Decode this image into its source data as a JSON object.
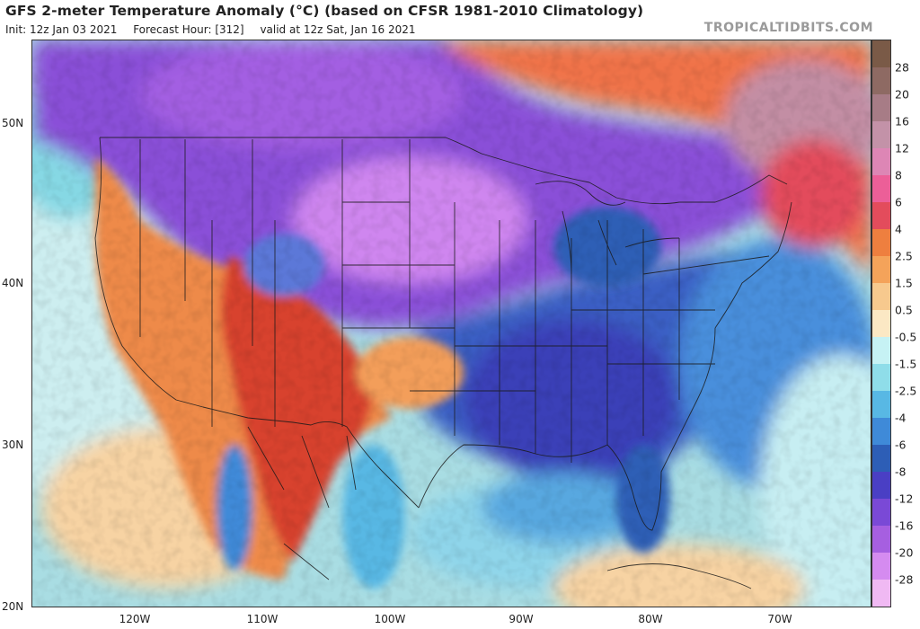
{
  "header": {
    "title": "GFS 2-meter Temperature Anomaly (°C) (based on CFSR 1981-2010 Climatology)",
    "init": "Init: 12z Jan 03 2021",
    "forecast_hour": "Forecast Hour: [312]",
    "valid": "valid at 12z Sat, Jan 16 2021",
    "brand": "TROPICALTIDBITS.COM"
  },
  "axes": {
    "latitudes": [
      "50N",
      "40N",
      "30N",
      "20N"
    ],
    "longitudes": [
      "120W",
      "110W",
      "100W",
      "90W",
      "80W",
      "70W"
    ]
  },
  "colorbar": {
    "labels": [
      "28",
      "20",
      "16",
      "12",
      "8",
      "6",
      "4",
      "2.5",
      "1.5",
      "0.5",
      "-0.5",
      "-1.5",
      "-2.5",
      "-4",
      "-6",
      "-8",
      "-12",
      "-16",
      "-20",
      "-28"
    ],
    "colors": [
      "#7a5a47",
      "#8e6a63",
      "#a77c86",
      "#c392a8",
      "#dd86b5",
      "#ec5f98",
      "#e34c5c",
      "#ee7f3f",
      "#f4a35a",
      "#f7c98e",
      "#fbe8c4",
      "#c6f2f4",
      "#8fdde9",
      "#58b8e4",
      "#3f8ad8",
      "#2d5eb6",
      "#4a3fc4",
      "#7a49d6",
      "#a65fe0",
      "#d58bf0",
      "#f0b9f3"
    ]
  },
  "regions": [
    {
      "name": "western-us-warm",
      "anomaly": "warm"
    },
    {
      "name": "southwest-mexico-warm",
      "anomaly": "warm"
    },
    {
      "name": "eastern-canada-warm",
      "anomaly": "warm"
    },
    {
      "name": "northern-plains-cold",
      "anomaly": "cold"
    },
    {
      "name": "southeast-us-cold",
      "anomaly": "cold"
    },
    {
      "name": "gulf-of-mexico-cool",
      "anomaly": "cold"
    },
    {
      "name": "atlantic-ocean-cool",
      "anomaly": "cold"
    }
  ]
}
